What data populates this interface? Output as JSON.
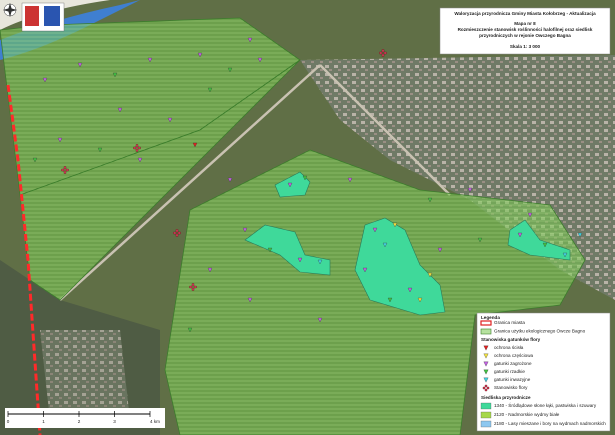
{
  "title_box": {
    "lines": [
      "Waloryzacja przyrodnicza Gminy Miasta Kołobrzeg - Aktualizacja",
      "Mapa nr 8",
      "Rozmieszczenie stanowisk roślinności halofilnej oraz siedlisk przyrodniczych w rejonie Owczego Bagna",
      "Skala 1: 3 000"
    ]
  },
  "legend": {
    "title": "Legenda",
    "boundaries": [
      "Granica miasta",
      "Granica użytku ekologicznego Owcze Bagno"
    ],
    "species_heading": "Stanowiska gatunków flory",
    "species": [
      "ochrona ścisła",
      "ochrona częściowa",
      "gatunki zagrożone",
      "gatunki rzadkie",
      "gatunki inwazyjne",
      "Stanowisko flory"
    ],
    "habitats_heading": "Siedliska przyrodnicze",
    "habitats": [
      "1340 - Śródlądowe słone łąki, pastwiska i szuwary",
      "2120 - Nadmorskie wydmy białe",
      "2180 - Lasy mieszane i bory na wydmach nadmorskich"
    ]
  },
  "scale_bar": {
    "labels": [
      "0",
      "1",
      "2",
      "3",
      "4 km"
    ]
  }
}
